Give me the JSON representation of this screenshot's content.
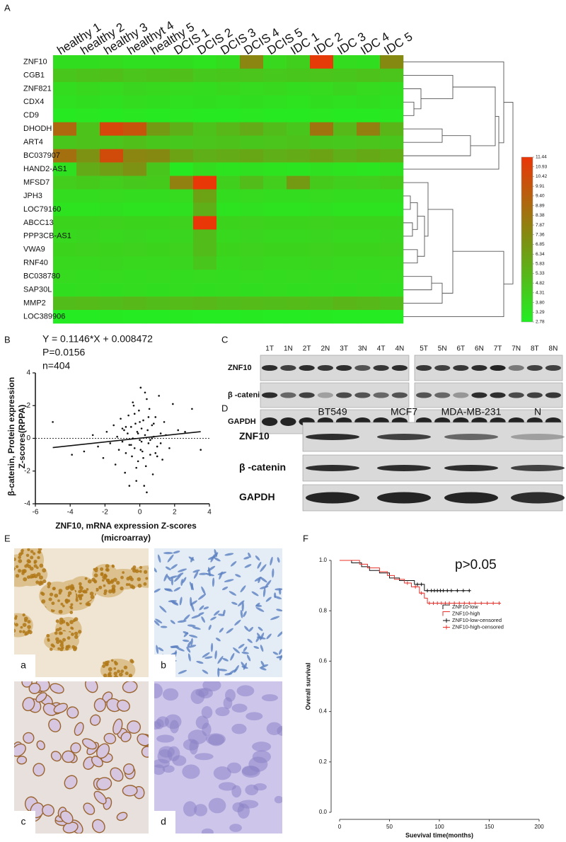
{
  "chart_data": [
    {
      "type": "heatmap",
      "label": "A",
      "columns": [
        "healthy 1",
        "healthy 2",
        "healthy 3",
        "healthyt 4",
        "healthy 5",
        "DCIS 1",
        "DCIS 2",
        "DCIS 3",
        "DCIS 4",
        "DCIS 5",
        "IDC 1",
        "IDC 2",
        "IDC 3",
        "IDC 4",
        "IDC 5"
      ],
      "rows": [
        "ZNF10",
        "CGB1",
        "ZNF821",
        "CDX4",
        "CD9",
        "DHODH",
        "ART4",
        "BC037907",
        "HAND2-AS1",
        "MFSD7",
        "JPH3",
        "LOC79160",
        "ABCC13",
        "PPP3CB-AS1",
        "VWA9",
        "RNF40",
        "BC038780",
        "SAP30L",
        "MMP2",
        "LOC389906"
      ],
      "values": [
        [
          3.5,
          3.5,
          3.6,
          3.4,
          3.4,
          3.5,
          3.3,
          3.6,
          7.6,
          3.8,
          4.2,
          11.2,
          3.6,
          3.5,
          7.4
        ],
        [
          4.6,
          4.8,
          4.9,
          4.7,
          4.8,
          4.9,
          4.5,
          4.6,
          4.7,
          4.5,
          4.6,
          4.7,
          4.6,
          4.8,
          4.7
        ],
        [
          3.6,
          3.8,
          3.7,
          3.9,
          3.8,
          3.7,
          3.6,
          3.8,
          3.7,
          3.8,
          3.6,
          3.7,
          3.9,
          3.7,
          3.6
        ],
        [
          3.4,
          3.5,
          3.4,
          3.6,
          3.5,
          3.4,
          3.5,
          3.4,
          3.5,
          3.4,
          3.3,
          3.5,
          3.4,
          3.5,
          3.4
        ],
        [
          3.0,
          3.1,
          3.0,
          3.1,
          3.0,
          3.1,
          3.0,
          3.0,
          3.1,
          3.0,
          3.0,
          3.1,
          3.0,
          3.0,
          3.1
        ],
        [
          9.0,
          4.8,
          10.6,
          10.0,
          6.6,
          5.6,
          4.8,
          5.3,
          5.8,
          5.0,
          4.6,
          8.4,
          5.2,
          7.9,
          5.4
        ],
        [
          4.6,
          4.8,
          4.7,
          4.9,
          4.6,
          4.5,
          4.7,
          4.8,
          4.6,
          4.7,
          4.8,
          4.6,
          4.5,
          4.7,
          4.6
        ],
        [
          8.6,
          7.0,
          10.4,
          7.6,
          7.4,
          6.2,
          5.6,
          5.8,
          6.0,
          5.6,
          5.8,
          6.2,
          5.6,
          5.9,
          5.7
        ],
        [
          3.4,
          5.8,
          6.4,
          7.0,
          4.6,
          3.0,
          3.6,
          3.3,
          3.4,
          3.3,
          3.2,
          3.4,
          3.3,
          3.2,
          3.4
        ],
        [
          4.3,
          4.4,
          4.3,
          4.5,
          4.4,
          7.8,
          11.4,
          4.2,
          5.0,
          4.3,
          6.6,
          4.4,
          4.2,
          4.3,
          4.4
        ],
        [
          3.6,
          3.6,
          3.7,
          3.6,
          3.6,
          3.7,
          6.2,
          3.6,
          3.7,
          3.6,
          3.6,
          3.7,
          3.6,
          3.6,
          3.6
        ],
        [
          3.3,
          3.3,
          3.4,
          3.3,
          3.3,
          3.4,
          5.6,
          3.3,
          3.4,
          3.3,
          3.3,
          3.4,
          3.3,
          3.3,
          3.3
        ],
        [
          4.0,
          4.0,
          4.1,
          4.0,
          4.0,
          4.1,
          11.4,
          4.0,
          4.1,
          4.0,
          4.0,
          4.1,
          4.0,
          4.0,
          4.0
        ],
        [
          3.8,
          3.9,
          3.8,
          3.9,
          3.8,
          3.9,
          5.0,
          3.8,
          3.9,
          3.8,
          3.8,
          3.9,
          3.8,
          3.8,
          3.9
        ],
        [
          4.0,
          4.1,
          4.0,
          4.1,
          4.0,
          4.1,
          5.0,
          4.0,
          4.1,
          4.0,
          4.0,
          4.1,
          4.0,
          4.0,
          4.1
        ],
        [
          3.8,
          3.8,
          3.9,
          3.8,
          3.8,
          3.9,
          4.6,
          3.8,
          3.9,
          3.8,
          3.8,
          3.9,
          3.8,
          3.8,
          3.8
        ],
        [
          3.7,
          3.6,
          3.7,
          3.6,
          3.7,
          3.6,
          3.7,
          3.6,
          3.7,
          3.6,
          3.7,
          3.6,
          3.7,
          3.6,
          3.7
        ],
        [
          3.5,
          3.6,
          3.5,
          3.6,
          3.5,
          3.6,
          3.5,
          3.6,
          3.5,
          3.6,
          3.5,
          3.6,
          3.5,
          3.6,
          3.5
        ],
        [
          5.0,
          5.1,
          5.0,
          5.2,
          5.0,
          5.1,
          5.3,
          5.0,
          5.1,
          5.0,
          5.1,
          5.0,
          5.4,
          5.2,
          5.0
        ],
        [
          2.9,
          2.9,
          3.0,
          2.9,
          2.9,
          3.0,
          2.9,
          2.9,
          3.0,
          2.9,
          2.9,
          3.0,
          2.9,
          2.9,
          2.9
        ]
      ],
      "zlim": [
        2.78,
        11.44
      ],
      "zticks": [
        11.44,
        10.93,
        10.42,
        9.91,
        {
          "value": 9.4,
          "label": "9.40"
        },
        8.89,
        8.38,
        7.87,
        7.36,
        6.85,
        6.34,
        5.83,
        5.33,
        4.82,
        4.31,
        {
          "value": 3.8,
          "label": "3.80"
        },
        3.29,
        2.78
      ],
      "colors": [
        "#22ee22",
        "#7f8f12",
        "#ea3608"
      ]
    },
    {
      "type": "scatter",
      "label": "B",
      "annotations": [
        "Y = 0.1146*X + 0.008472",
        "P=0.0156",
        "n=404"
      ],
      "xlabel": [
        "ZNF10, mRNA expression Z-scores",
        "(microarray)"
      ],
      "ylabel": [
        "β-catenin, Protein expression",
        "Z-scores(RPPA)"
      ],
      "x": [
        -5,
        -3.9,
        -3.2,
        -2.7,
        -2.4,
        -2.1,
        -1.9,
        -1.7,
        -1.5,
        -1.4,
        -1.3,
        -1.2,
        -1.1,
        -1.0,
        -0.9,
        -0.85,
        -0.8,
        -0.7,
        -0.65,
        -0.6,
        -0.5,
        -0.45,
        -0.4,
        -0.35,
        -0.3,
        -0.25,
        -0.2,
        -0.15,
        -0.1,
        -0.05,
        0,
        0.05,
        0.1,
        0.15,
        0.2,
        0.25,
        0.3,
        0.35,
        0.4,
        0.45,
        0.5,
        0.55,
        0.6,
        0.7,
        0.75,
        0.8,
        0.9,
        1.0,
        1.1,
        1.2,
        1.3,
        1.4,
        1.5,
        1.7,
        1.9,
        2.2,
        2.6,
        3.0,
        3.5,
        -0.6,
        -0.3,
        0.1,
        0.4,
        0.8,
        -1.0,
        -0.2,
        0.3,
        0.6,
        1.0,
        -0.5,
        0.0,
        0.2,
        -0.1,
        0.5,
        0.9,
        -0.8,
        1.2,
        0.05,
        -0.4,
        0.7
      ],
      "values": [
        1.0,
        -1.0,
        -0.8,
        0.2,
        -0.5,
        -1.2,
        0.4,
        -0.3,
        0.8,
        -1.6,
        0.1,
        -0.7,
        1.2,
        -0.2,
        0.5,
        -2.1,
        -0.9,
        0.3,
        1.4,
        -0.4,
        0.7,
        -1.1,
        0.0,
        2.0,
        -0.6,
        0.9,
        -2.6,
        0.4,
        -1.4,
        1.7,
        -0.1,
        3.1,
        0.6,
        -0.8,
        1.1,
        -2.9,
        0.2,
        -1.7,
        2.4,
        0.5,
        -0.3,
        1.8,
        -1.0,
        0.8,
        -2.2,
        0.1,
        1.3,
        -0.5,
        2.6,
        0.3,
        -1.3,
        1.0,
        0.2,
        -0.6,
        2.1,
        0.5,
        0.4,
        1.8,
        -0.7,
        -2.9,
        1.5,
        -0.2,
        -3.3,
        0.9,
        0.6,
        -1.8,
        2.8,
        -0.1,
        -1.1,
        -0.4,
        1.0,
        -1.2,
        0.3,
        1.3,
        -0.9,
        0.7,
        -0.3,
        -0.7,
        2.2,
        0.0
      ],
      "fit": {
        "x": [
          -5,
          3.5
        ],
        "values": [
          -0.565,
          0.41
        ]
      },
      "xlim": [
        -6,
        4
      ],
      "xticks": [
        -6,
        -4,
        -2,
        0,
        2,
        4
      ],
      "ylim": [
        -4,
        4
      ],
      "yticks": [
        -4,
        -2,
        0,
        2,
        4
      ],
      "color": "#111111"
    },
    {
      "type": "line",
      "label": "F",
      "annotation": "p>0.05",
      "xlabel": "Suevival time(months)",
      "ylabel": "Overall survival",
      "xlim": [
        0,
        200
      ],
      "xticks": [
        0,
        50,
        100,
        150,
        200
      ],
      "ylim": [
        0,
        1
      ],
      "yticks": [
        {
          "value": 0,
          "label": "0.0"
        },
        0.2,
        0.4,
        0.6,
        0.8,
        {
          "value": 1,
          "label": "1.0"
        }
      ],
      "series": [
        {
          "name": "ZNF10-low",
          "color": "#111111",
          "x": [
            0,
            12,
            22,
            30,
            40,
            50,
            60,
            75,
            85,
            130
          ],
          "values": [
            1,
            0.99,
            0.975,
            0.96,
            0.95,
            0.93,
            0.92,
            0.905,
            0.88,
            0.88
          ]
        },
        {
          "name": "ZNF10-high",
          "color": "#e8302a",
          "x": [
            0,
            20,
            28,
            40,
            48,
            55,
            65,
            72,
            80,
            85,
            88,
            160
          ],
          "values": [
            1,
            0.985,
            0.97,
            0.955,
            0.94,
            0.925,
            0.91,
            0.895,
            0.87,
            0.85,
            0.83,
            0.83
          ]
        },
        {
          "name": "ZNF10-low-censored",
          "color": "#111111",
          "x": [
            78,
            82,
            88,
            92,
            95,
            98,
            101,
            104,
            108,
            112,
            118,
            124,
            130
          ],
          "values": [
            0.905,
            0.905,
            0.88,
            0.88,
            0.88,
            0.88,
            0.88,
            0.88,
            0.88,
            0.88,
            0.88,
            0.88,
            0.88
          ]
        },
        {
          "name": "ZNF10-high-censored",
          "color": "#e8302a",
          "x": [
            68,
            76,
            82,
            90,
            94,
            98,
            102,
            106,
            110,
            115,
            120,
            125,
            130,
            136,
            142,
            148,
            154,
            160
          ],
          "values": [
            0.91,
            0.895,
            0.87,
            0.83,
            0.83,
            0.83,
            0.83,
            0.83,
            0.83,
            0.83,
            0.83,
            0.83,
            0.83,
            0.83,
            0.83,
            0.83,
            0.83,
            0.83
          ]
        }
      ]
    }
  ],
  "blots": [
    {
      "label": "C",
      "lanes": [
        [
          "1T",
          "1N",
          "2T",
          "2N",
          "3T",
          "3N",
          "4T",
          "4N"
        ],
        [
          "5T",
          "5N",
          "6T",
          "6N",
          "7T",
          "7N",
          "8T",
          "8N"
        ]
      ],
      "rows": [
        "ZNF10",
        "β -catenin",
        "GAPDH"
      ]
    },
    {
      "label": "D",
      "lanes": [
        "BT549",
        "MCF7",
        "MDA-MB-231",
        "N"
      ],
      "rows": [
        "ZNF10",
        "β -catenin",
        "GAPDH"
      ]
    }
  ],
  "ihc": {
    "label": "E",
    "panels": [
      "a",
      "b",
      "c",
      "d"
    ]
  }
}
